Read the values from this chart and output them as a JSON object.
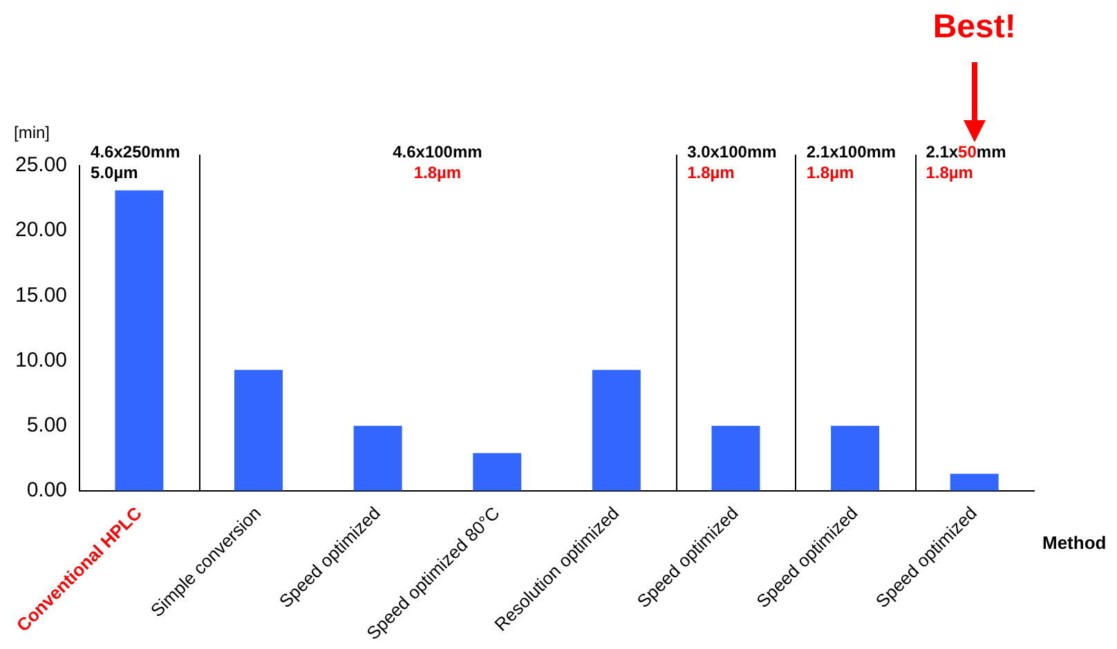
{
  "chart_data": {
    "type": "bar",
    "ylabel": "[min]",
    "xlabel": "Method",
    "categories": [
      "Conventional HPLC",
      "Simple conversion",
      "Speed optimized",
      "Speed optimized 80°C",
      "Resolution optimized",
      "Speed optimized",
      "Speed optimized",
      "Speed optimized"
    ],
    "values": [
      23.1,
      9.3,
      5.0,
      2.9,
      9.3,
      5.0,
      5.0,
      1.3
    ],
    "color": "#3366ff",
    "ylim": [
      0,
      25
    ],
    "yticks": [
      {
        "value": 0,
        "label": "0.00"
      },
      {
        "value": 5,
        "label": "5.00"
      },
      {
        "value": 10,
        "label": "10.00"
      },
      {
        "value": 15,
        "label": "15.00"
      },
      {
        "value": 20,
        "label": "20.00"
      },
      {
        "value": 25,
        "label": "25.00"
      }
    ],
    "grid": false,
    "legend": false,
    "annotations": [
      "4.6x250mm\n5.0µm",
      "4.6x100mm\n1.8µm",
      "3.0x100mm\n1.8µm",
      "2.1x100mm\n1.8µm",
      "2.1x50mm\n1.8µm",
      "Best!"
    ]
  }
}
